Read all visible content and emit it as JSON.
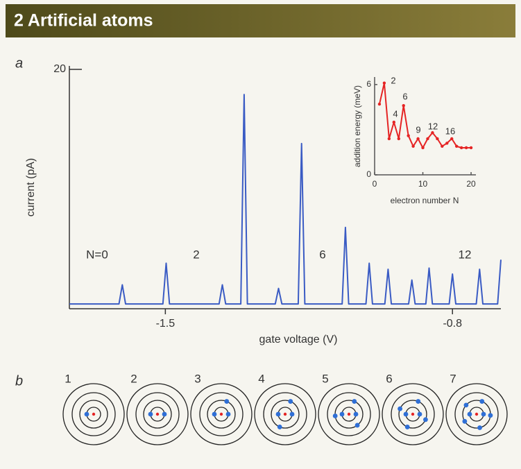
{
  "header": {
    "title": "2 Artificial atoms"
  },
  "panels": {
    "a": "a",
    "b": "b"
  },
  "chart_data": [
    {
      "type": "line",
      "annotations": [
        "N=0",
        "2",
        "6",
        "12"
      ],
      "x_label": "gate voltage (V)",
      "y_label": "current (pA)",
      "x": [
        -1.734,
        -1.613,
        -1.605,
        -1.597,
        -1.506,
        -1.498,
        -1.49,
        -1.369,
        -1.361,
        -1.353,
        -1.316,
        -1.308,
        -1.3,
        -1.232,
        -1.224,
        -1.216,
        -1.176,
        -1.168,
        -1.16,
        -1.069,
        -1.061,
        -1.053,
        -1.011,
        -1.003,
        -0.995,
        -0.965,
        -0.957,
        -0.949,
        -0.907,
        -0.899,
        -0.891,
        -0.865,
        -0.857,
        -0.849,
        -0.808,
        -0.8,
        -0.792,
        -0.742,
        -0.734,
        -0.726,
        -0.69,
        -0.682
      ],
      "series": [
        {
          "color": "#3a5bc4",
          "values": [
            0.4,
            0.4,
            2.0,
            0.4,
            0.4,
            3.8,
            0.4,
            0.4,
            2.0,
            0.4,
            0.4,
            17.9,
            0.4,
            0.4,
            1.7,
            0.4,
            0.4,
            13.8,
            0.4,
            0.4,
            6.8,
            0.4,
            0.4,
            3.8,
            0.4,
            0.4,
            3.3,
            0.4,
            0.4,
            2.4,
            0.4,
            0.4,
            3.4,
            0.4,
            0.4,
            2.9,
            0.4,
            0.4,
            3.3,
            0.4,
            0.4,
            4.1
          ]
        }
      ],
      "xlim": [
        -1.734,
        -0.682
      ],
      "ylim": [
        0,
        20
      ],
      "xticks": [
        -1.5,
        -0.8
      ],
      "yticks": [
        20
      ]
    },
    {
      "type": "line",
      "annotations": [
        "2",
        "4",
        "6",
        "9",
        "12",
        "16"
      ],
      "x_label": "electron number N",
      "y_label": "addition energy (meV)",
      "x": [
        1,
        2,
        3,
        4,
        5,
        6,
        7,
        8,
        9,
        10,
        11,
        12,
        13,
        14,
        15,
        16,
        17,
        18,
        19,
        20
      ],
      "series": [
        {
          "color": "#e52424",
          "values": [
            4.7,
            6.1,
            2.4,
            3.5,
            2.4,
            4.6,
            2.6,
            1.9,
            2.4,
            1.8,
            2.4,
            2.8,
            2.4,
            1.9,
            2.1,
            2.4,
            1.9,
            1.8,
            1.8,
            1.8
          ]
        }
      ],
      "xlim": [
        0,
        21
      ],
      "ylim": [
        0,
        6.5
      ],
      "xticks": [
        0,
        10,
        20
      ],
      "yticks": [
        0,
        6
      ]
    }
  ],
  "atoms": [
    "1",
    "2",
    "3",
    "4",
    "5",
    "6",
    "7"
  ]
}
